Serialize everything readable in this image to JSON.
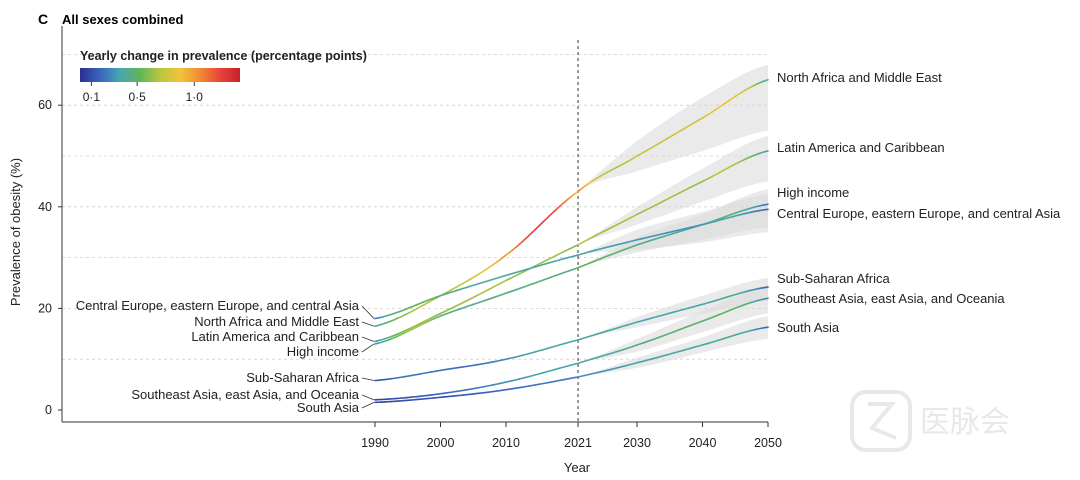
{
  "panel": {
    "letter": "C",
    "title": "All sexes combined"
  },
  "legend": {
    "title": "Yearly change in prevalence (percentage points)",
    "ticks": [
      {
        "value": 0.1,
        "label": "0·1"
      },
      {
        "value": 0.5,
        "label": "0·5"
      },
      {
        "value": 1.0,
        "label": "1·0"
      }
    ],
    "range": [
      0.0,
      1.4
    ],
    "colors": [
      "#2c2f8f",
      "#3b64c0",
      "#4aa6b0",
      "#5fb55a",
      "#b9c640",
      "#f2c43a",
      "#f08a32",
      "#e8443c",
      "#c6202c"
    ]
  },
  "watermark": {
    "text": "医脉会"
  },
  "chart_data": {
    "type": "line",
    "xlabel": "Year",
    "ylabel": "Prevalence of obesity (%)",
    "xticks": [
      1990,
      2000,
      2010,
      2021,
      2030,
      2040,
      2050
    ],
    "yticks": [
      0,
      20,
      40,
      60
    ],
    "xlim": [
      1990,
      2050
    ],
    "ylim": [
      0,
      70
    ],
    "reference_line_x": 2021,
    "grid": "horizontal dashed at 10-point intervals",
    "years": [
      1990,
      2000,
      2010,
      2021,
      2030,
      2040,
      2050
    ],
    "series": [
      {
        "name": "North Africa and Middle East",
        "left_label": "North Africa and Middle East",
        "right_label": "North Africa and Middle East",
        "values": [
          16.5,
          22.5,
          30.5,
          43.0,
          50.0,
          57.5,
          65.0
        ],
        "lower": [
          16.5,
          22.5,
          30.5,
          43.0,
          47.0,
          51.0,
          55.0
        ],
        "upper": [
          16.5,
          22.5,
          30.5,
          43.0,
          53.0,
          61.5,
          68.0
        ]
      },
      {
        "name": "Latin America and Caribbean",
        "left_label": "Latin America and Caribbean",
        "right_label": "Latin America and Caribbean",
        "values": [
          13.5,
          19.0,
          25.5,
          32.5,
          38.5,
          45.0,
          51.0
        ],
        "lower": [
          13.5,
          19.0,
          25.5,
          32.5,
          36.5,
          41.0,
          45.0
        ],
        "upper": [
          13.5,
          19.0,
          25.5,
          32.5,
          40.0,
          47.5,
          54.0
        ]
      },
      {
        "name": "High income",
        "left_label": "High income",
        "right_label": "High income",
        "values": [
          13.0,
          18.5,
          23.0,
          28.0,
          32.5,
          36.5,
          40.5
        ],
        "lower": [
          13.0,
          18.5,
          23.0,
          28.0,
          31.0,
          33.5,
          36.0
        ],
        "upper": [
          13.0,
          18.5,
          23.0,
          28.0,
          34.0,
          38.5,
          43.5
        ]
      },
      {
        "name": "Central Europe, eastern Europe, and central Asia",
        "left_label": "Central Europe, eastern Europe, and central Asia",
        "right_label": "Central Europe, eastern Europe, and central Asia",
        "values": [
          18.0,
          22.5,
          26.5,
          30.5,
          33.5,
          36.5,
          39.5
        ],
        "lower": [
          18.0,
          22.5,
          26.5,
          30.5,
          31.5,
          33.0,
          35.0
        ],
        "upper": [
          18.0,
          22.5,
          26.5,
          30.5,
          35.5,
          39.0,
          42.5
        ]
      },
      {
        "name": "Sub-Saharan Africa",
        "left_label": "Sub-Saharan Africa",
        "right_label": "Sub-Saharan Africa",
        "values": [
          5.8,
          7.8,
          10.0,
          13.8,
          17.3,
          20.8,
          24.2
        ],
        "lower": [
          5.8,
          7.8,
          10.0,
          13.8,
          16.3,
          19.0,
          21.5
        ],
        "upper": [
          5.8,
          7.8,
          10.0,
          13.8,
          18.3,
          22.5,
          26.0
        ]
      },
      {
        "name": "Southeast Asia, east Asia, and Oceania",
        "left_label": "Southeast Asia, east Asia, and Oceania",
        "right_label": "Southeast Asia, east Asia, and Oceania",
        "values": [
          2.0,
          3.2,
          5.5,
          9.2,
          12.8,
          17.5,
          22.0
        ],
        "lower": [
          2.0,
          3.2,
          5.5,
          9.2,
          11.5,
          15.3,
          19.0
        ],
        "upper": [
          2.0,
          3.2,
          5.5,
          9.2,
          14.0,
          19.5,
          24.5
        ]
      },
      {
        "name": "South Asia",
        "left_label": "South Asia",
        "right_label": "South Asia",
        "values": [
          1.5,
          2.5,
          4.0,
          6.5,
          9.3,
          12.8,
          16.3
        ],
        "lower": [
          1.5,
          2.5,
          4.0,
          6.5,
          8.3,
          11.3,
          14.0
        ],
        "upper": [
          1.5,
          2.5,
          4.0,
          6.5,
          10.3,
          14.3,
          18.5
        ]
      }
    ]
  }
}
